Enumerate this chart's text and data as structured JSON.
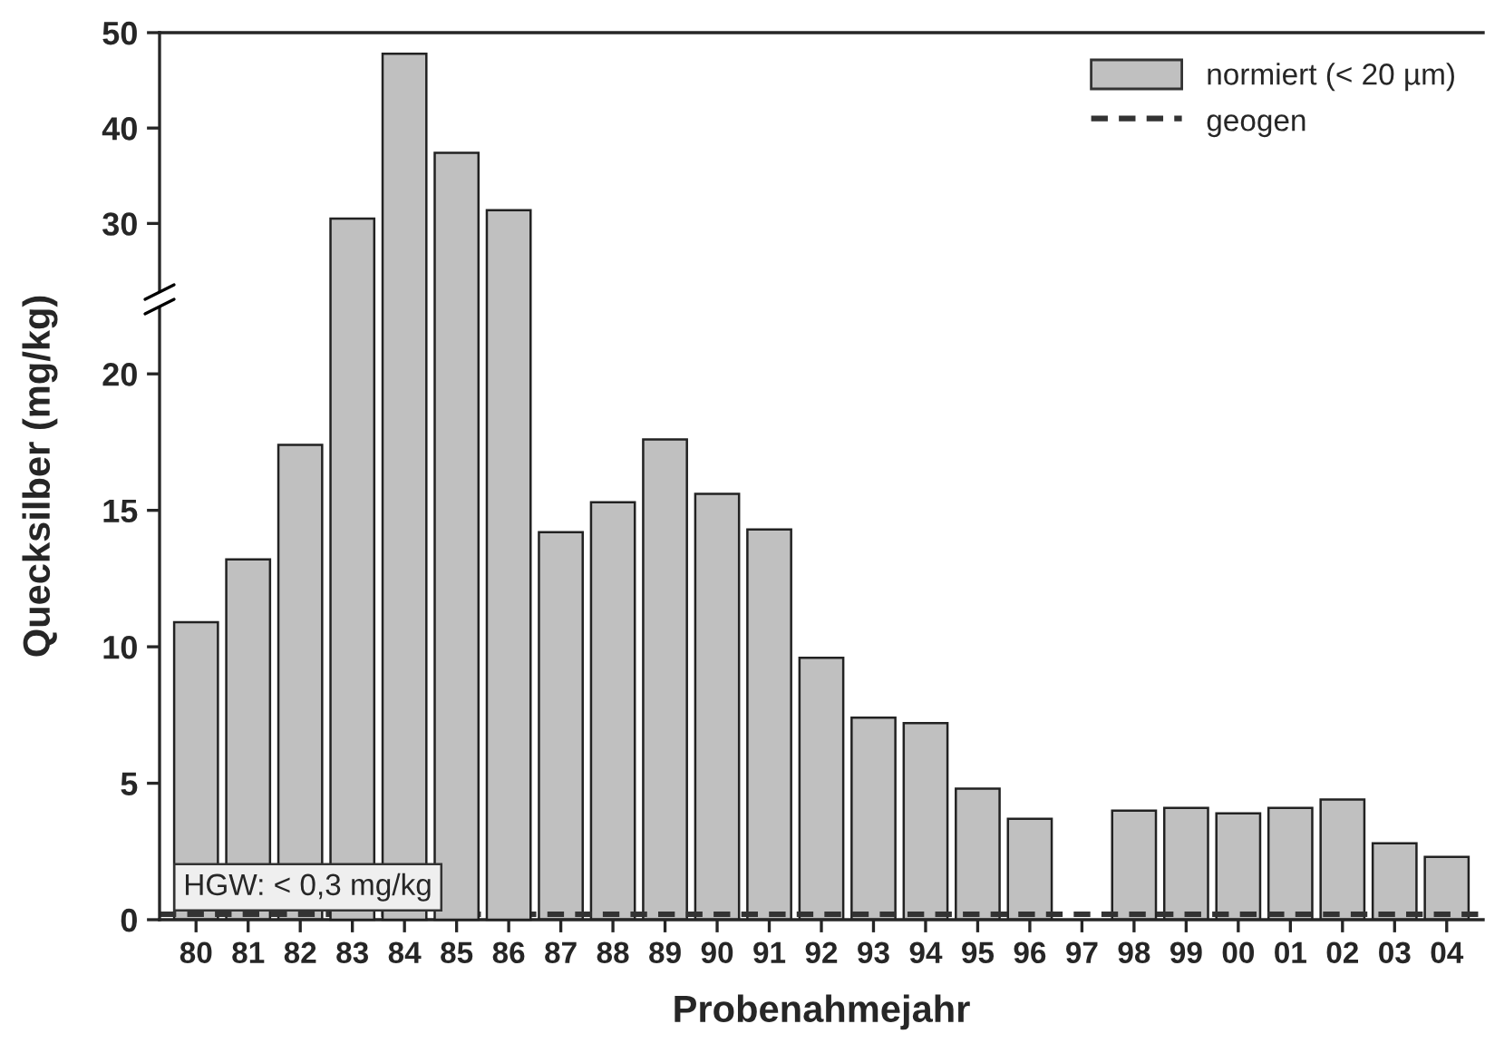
{
  "chart_data": [
    {
      "type": "bar",
      "categories": [
        "80",
        "81",
        "82",
        "83",
        "84",
        "85",
        "86",
        "87",
        "88",
        "89",
        "90",
        "91",
        "92",
        "93",
        "94",
        "95",
        "96",
        "97",
        "98",
        "99",
        "00",
        "01",
        "02",
        "03",
        "04"
      ],
      "series": [
        {
          "name": "normiert (< 20 µm)",
          "color": "#c0c0c0",
          "values": [
            null,
            null,
            null,
            30.5,
            47.8,
            37.4,
            31.4,
            null,
            null,
            null,
            null,
            null,
            null,
            null,
            null,
            null,
            null,
            null,
            null,
            null,
            null,
            null,
            null,
            null,
            null
          ]
        }
      ],
      "ylim": [
        23,
        50
      ],
      "yticks": [
        30,
        40,
        50
      ],
      "tick_labels": "y",
      "legend": "top right",
      "grid": false
    },
    {
      "type": "bar",
      "categories": [
        "80",
        "81",
        "82",
        "83",
        "84",
        "85",
        "86",
        "87",
        "88",
        "89",
        "90",
        "91",
        "92",
        "93",
        "94",
        "95",
        "96",
        "97",
        "98",
        "99",
        "00",
        "01",
        "02",
        "03",
        "04"
      ],
      "series": [
        {
          "color": "#c0c0c0",
          "values": [
            10.9,
            13.2,
            17.4,
            null,
            null,
            null,
            null,
            14.2,
            15.3,
            17.6,
            15.6,
            14.3,
            9.6,
            7.4,
            7.2,
            4.8,
            3.7,
            null,
            4.0,
            4.1,
            3.9,
            4.1,
            4.4,
            2.8,
            2.3
          ]
        }
      ],
      "ylim": [
        0,
        22.4
      ],
      "yticks": [
        0,
        5,
        10,
        15,
        20
      ],
      "xlabel": "Probenahmejahr",
      "ylabel": "Quecksilber (mg/kg)",
      "ref_lines": [
        {
          "axis": "y",
          "value": 0.2,
          "label": "geogen",
          "color": "#333333",
          "line_style": "dashed"
        }
      ],
      "annotations": [
        "HGW: < 0,3 mg/kg"
      ],
      "grid": false
    }
  ]
}
